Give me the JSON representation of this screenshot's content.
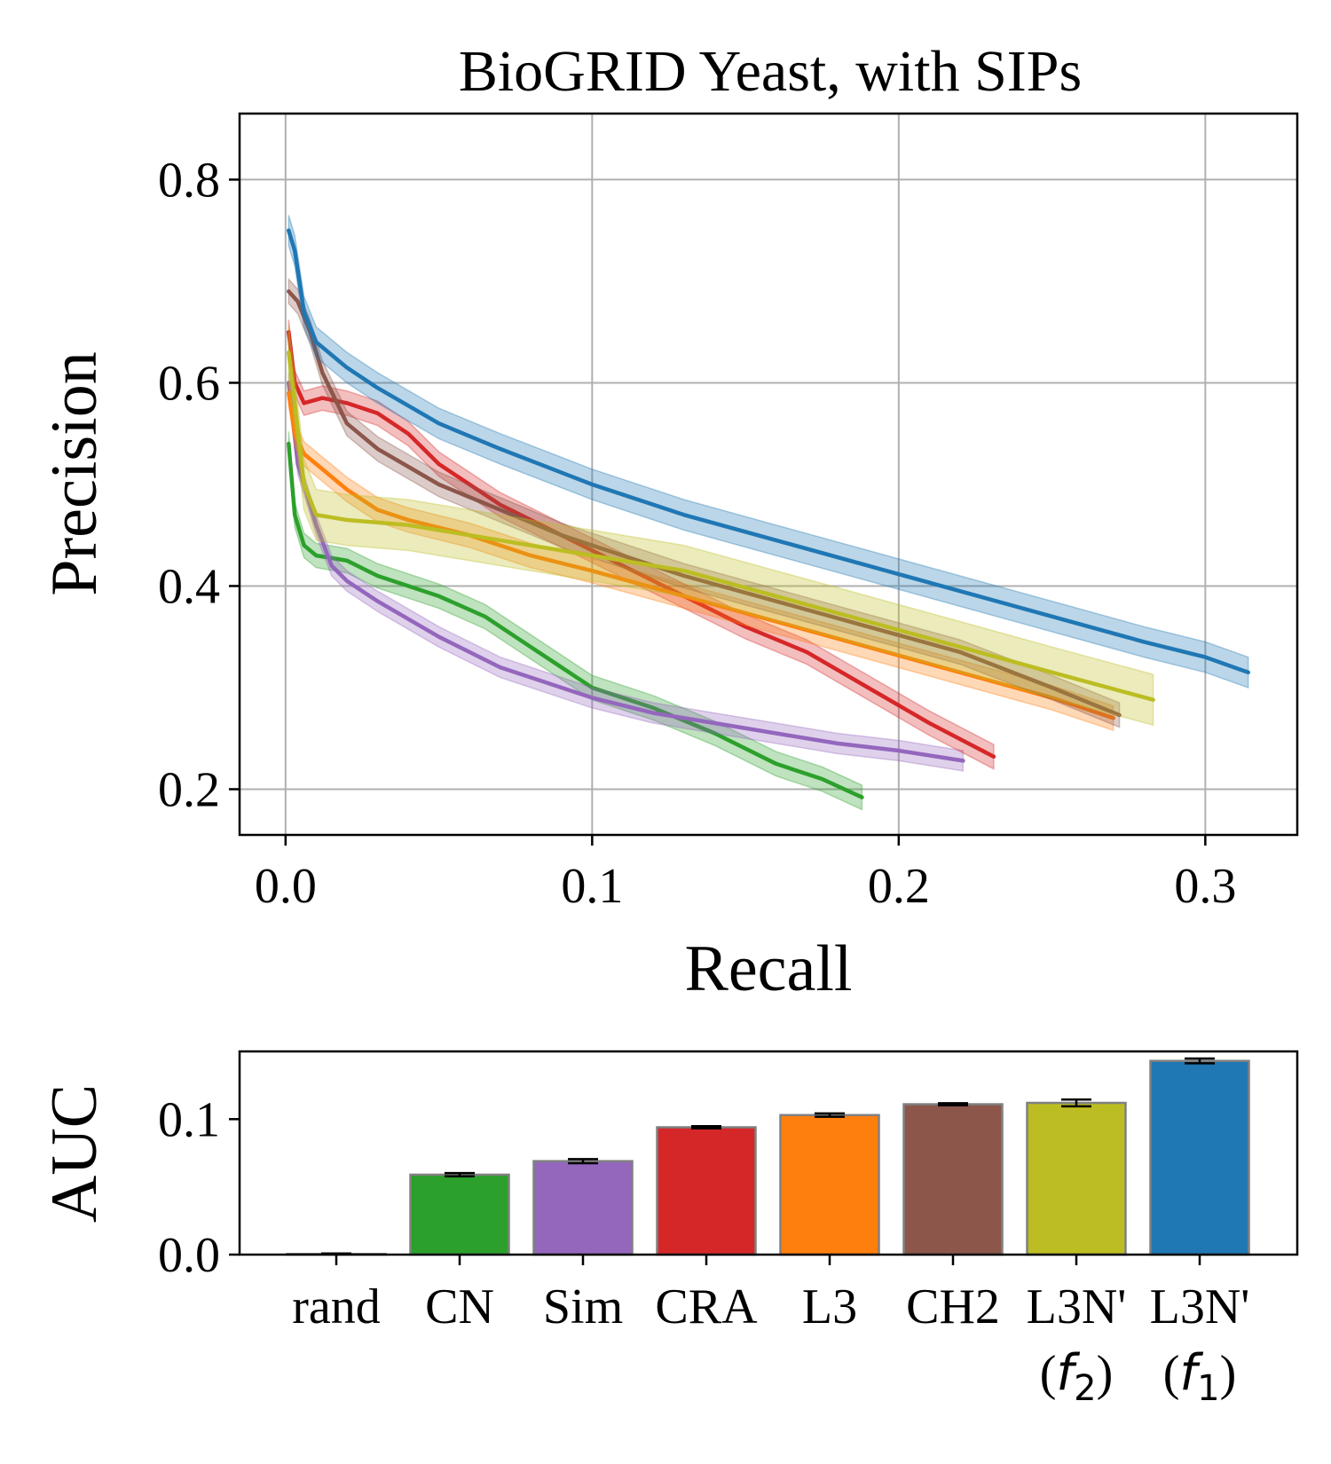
{
  "chart_data": [
    {
      "type": "line",
      "title": "BioGRID Yeast, with SIPs",
      "xlabel": "Recall",
      "ylabel": "Precision",
      "xlim": [
        -0.015,
        0.33
      ],
      "ylim": [
        0.155,
        0.865
      ],
      "xticks": [
        0.0,
        0.1,
        0.2,
        0.3
      ],
      "xtick_labels": [
        "0.0",
        "0.1",
        "0.2",
        "0.3"
      ],
      "yticks": [
        0.2,
        0.4,
        0.6,
        0.8
      ],
      "ytick_labels": [
        "0.2",
        "0.4",
        "0.6",
        "0.8"
      ],
      "grid": true,
      "series": [
        {
          "color": "#2ca02c",
          "band": 0.012,
          "points": [
            [
              0.001,
              0.54
            ],
            [
              0.003,
              0.47
            ],
            [
              0.006,
              0.44
            ],
            [
              0.01,
              0.43
            ],
            [
              0.02,
              0.425
            ],
            [
              0.03,
              0.41
            ],
            [
              0.05,
              0.39
            ],
            [
              0.065,
              0.37
            ],
            [
              0.08,
              0.34
            ],
            [
              0.1,
              0.3
            ],
            [
              0.12,
              0.28
            ],
            [
              0.14,
              0.255
            ],
            [
              0.16,
              0.225
            ],
            [
              0.175,
              0.21
            ],
            [
              0.188,
              0.192
            ]
          ]
        },
        {
          "color": "#9467bd",
          "band": 0.01,
          "points": [
            [
              0.001,
              0.6
            ],
            [
              0.004,
              0.52
            ],
            [
              0.01,
              0.46
            ],
            [
              0.015,
              0.42
            ],
            [
              0.02,
              0.405
            ],
            [
              0.03,
              0.385
            ],
            [
              0.05,
              0.35
            ],
            [
              0.07,
              0.32
            ],
            [
              0.09,
              0.3
            ],
            [
              0.1,
              0.29
            ],
            [
              0.12,
              0.275
            ],
            [
              0.14,
              0.265
            ],
            [
              0.16,
              0.255
            ],
            [
              0.18,
              0.245
            ],
            [
              0.2,
              0.238
            ],
            [
              0.221,
              0.228
            ]
          ]
        },
        {
          "color": "#d62728",
          "band": 0.012,
          "points": [
            [
              0.001,
              0.65
            ],
            [
              0.003,
              0.6
            ],
            [
              0.006,
              0.58
            ],
            [
              0.012,
              0.585
            ],
            [
              0.02,
              0.58
            ],
            [
              0.03,
              0.57
            ],
            [
              0.04,
              0.55
            ],
            [
              0.05,
              0.52
            ],
            [
              0.07,
              0.48
            ],
            [
              0.09,
              0.45
            ],
            [
              0.11,
              0.42
            ],
            [
              0.13,
              0.39
            ],
            [
              0.15,
              0.36
            ],
            [
              0.17,
              0.335
            ],
            [
              0.19,
              0.3
            ],
            [
              0.21,
              0.265
            ],
            [
              0.231,
              0.232
            ]
          ]
        },
        {
          "color": "#ff7f0e",
          "band": 0.012,
          "points": [
            [
              0.001,
              0.59
            ],
            [
              0.003,
              0.55
            ],
            [
              0.006,
              0.53
            ],
            [
              0.01,
              0.52
            ],
            [
              0.02,
              0.495
            ],
            [
              0.03,
              0.475
            ],
            [
              0.04,
              0.465
            ],
            [
              0.06,
              0.45
            ],
            [
              0.08,
              0.43
            ],
            [
              0.1,
              0.415
            ],
            [
              0.13,
              0.39
            ],
            [
              0.16,
              0.365
            ],
            [
              0.19,
              0.34
            ],
            [
              0.22,
              0.315
            ],
            [
              0.25,
              0.29
            ],
            [
              0.27,
              0.27
            ]
          ]
        },
        {
          "color": "#8c564b",
          "band": 0.012,
          "points": [
            [
              0.001,
              0.69
            ],
            [
              0.004,
              0.68
            ],
            [
              0.008,
              0.65
            ],
            [
              0.012,
              0.61
            ],
            [
              0.02,
              0.56
            ],
            [
              0.03,
              0.535
            ],
            [
              0.05,
              0.5
            ],
            [
              0.07,
              0.475
            ],
            [
              0.09,
              0.45
            ],
            [
              0.11,
              0.43
            ],
            [
              0.13,
              0.41
            ],
            [
              0.16,
              0.385
            ],
            [
              0.19,
              0.36
            ],
            [
              0.22,
              0.335
            ],
            [
              0.25,
              0.3
            ],
            [
              0.272,
              0.273
            ]
          ]
        },
        {
          "color": "#bcbd22",
          "band": 0.025,
          "points": [
            [
              0.001,
              0.63
            ],
            [
              0.003,
              0.58
            ],
            [
              0.006,
              0.5
            ],
            [
              0.01,
              0.47
            ],
            [
              0.02,
              0.465
            ],
            [
              0.04,
              0.46
            ],
            [
              0.06,
              0.45
            ],
            [
              0.08,
              0.44
            ],
            [
              0.1,
              0.43
            ],
            [
              0.13,
              0.415
            ],
            [
              0.16,
              0.39
            ],
            [
              0.19,
              0.365
            ],
            [
              0.22,
              0.34
            ],
            [
              0.25,
              0.315
            ],
            [
              0.283,
              0.288
            ]
          ]
        },
        {
          "color": "#1f77b4",
          "band": 0.015,
          "points": [
            [
              0.001,
              0.75
            ],
            [
              0.003,
              0.73
            ],
            [
              0.006,
              0.67
            ],
            [
              0.01,
              0.64
            ],
            [
              0.02,
              0.615
            ],
            [
              0.03,
              0.595
            ],
            [
              0.05,
              0.56
            ],
            [
              0.07,
              0.535
            ],
            [
              0.1,
              0.5
            ],
            [
              0.13,
              0.47
            ],
            [
              0.16,
              0.445
            ],
            [
              0.19,
              0.42
            ],
            [
              0.22,
              0.395
            ],
            [
              0.25,
              0.37
            ],
            [
              0.28,
              0.345
            ],
            [
              0.3,
              0.33
            ],
            [
              0.314,
              0.315
            ]
          ]
        }
      ]
    },
    {
      "type": "bar",
      "ylabel": "AUC",
      "ylim": [
        0.0,
        0.15
      ],
      "yticks": [
        0.0,
        0.1
      ],
      "ytick_labels": [
        "0.0",
        "0.1"
      ],
      "grid": false,
      "bars": [
        {
          "label": "rand",
          "label2": "",
          "value": 0.0005,
          "err": 0.0003,
          "color": "#ffffff"
        },
        {
          "label": "CN",
          "label2": "",
          "value": 0.059,
          "err": 0.0012,
          "color": "#2ca02c"
        },
        {
          "label": "Sim",
          "label2": "",
          "value": 0.069,
          "err": 0.0015,
          "color": "#9467bd"
        },
        {
          "label": "CRA",
          "label2": "",
          "value": 0.094,
          "err": 0.0008,
          "color": "#d62728"
        },
        {
          "label": "L3",
          "label2": "",
          "value": 0.103,
          "err": 0.0012,
          "color": "#ff7f0e"
        },
        {
          "label": "CH2",
          "label2": "",
          "value": 0.111,
          "err": 0.0008,
          "color": "#8c564b"
        },
        {
          "label": "L3N'",
          "label2": "(f",
          "sub": "2",
          "value": 0.112,
          "err": 0.0025,
          "color": "#bcbd22"
        },
        {
          "label": "L3N'",
          "label2": "(f",
          "sub": "1",
          "value": 0.143,
          "err": 0.0018,
          "color": "#1f77b4"
        }
      ]
    }
  ]
}
